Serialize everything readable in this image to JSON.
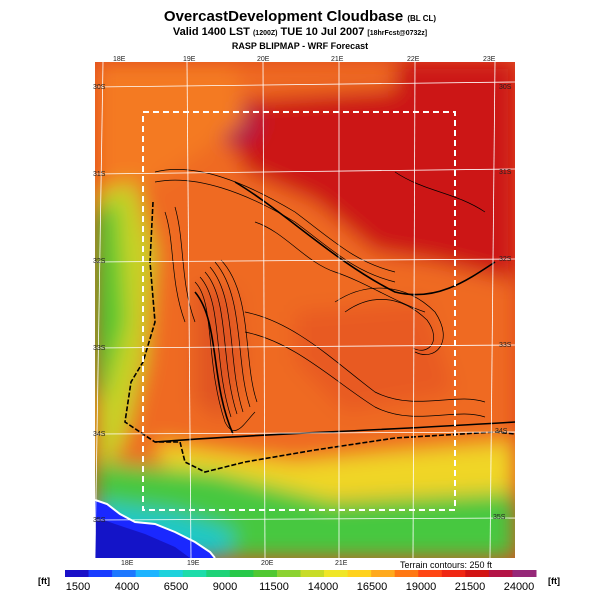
{
  "header": {
    "title": "OvercastDevelopment Cloudbase",
    "title_suffix": "(BL CL)",
    "valid_prefix": "Valid 1400 LST",
    "valid_zulu": "(1200Z)",
    "valid_date": "TUE 10 Jul 2007",
    "valid_fcst": "[18hrFcst@0732z]",
    "subtitle": "RASP BLIPMAP - WRF Forecast"
  },
  "map": {
    "lon_labels_top": [
      "18E",
      "19E",
      "20E",
      "21E",
      "22E",
      "23E"
    ],
    "lon_labels_bottom": [
      "18E",
      "19E",
      "20E",
      "21E"
    ],
    "lat_labels_left": [
      "30S",
      "31S",
      "32S",
      "33S",
      "34S",
      "35S"
    ],
    "lat_labels_right": [
      "30S",
      "31S",
      "32S",
      "33S",
      "34S",
      "35S"
    ],
    "terrain_note": "Terrain contours: 250 ft"
  },
  "colorbar": {
    "unit_left": "[ft]",
    "unit_right": "[ft]",
    "tick_labels": [
      "1500",
      "4000",
      "6500",
      "9000",
      "11500",
      "14000",
      "16500",
      "19000",
      "21500",
      "24000"
    ],
    "colors": [
      "#1a10c8",
      "#1a3cff",
      "#1e78ff",
      "#1eb4ff",
      "#1ed2dc",
      "#1edcaa",
      "#1ed278",
      "#28c84a",
      "#50c832",
      "#8cd232",
      "#c8dc28",
      "#f0e628",
      "#ffd21e",
      "#ffaa1e",
      "#ff7814",
      "#ff4614",
      "#f02814",
      "#d21414",
      "#b41446",
      "#962878"
    ]
  }
}
